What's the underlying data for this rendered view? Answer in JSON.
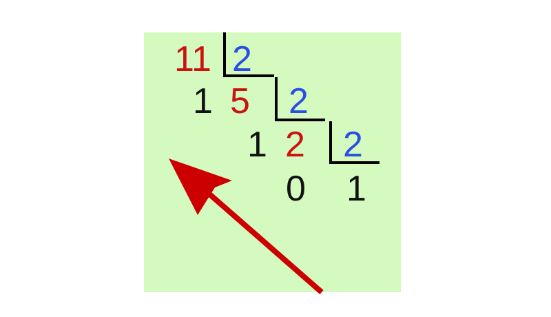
{
  "division": {
    "step1": {
      "dividend": "11",
      "divisor": "2",
      "remainder": "1",
      "quotient": "5"
    },
    "step2": {
      "divisor": "2",
      "remainder": "1",
      "quotient": "2"
    },
    "step3": {
      "divisor": "2",
      "remainder": "0",
      "quotient": "1"
    }
  },
  "colors": {
    "background": "#d4fac0",
    "dividend": "#cc1111",
    "divisor": "#2a4fe0",
    "remainder": "#111111",
    "lines": "#000000",
    "arrow": "#cc0000"
  }
}
